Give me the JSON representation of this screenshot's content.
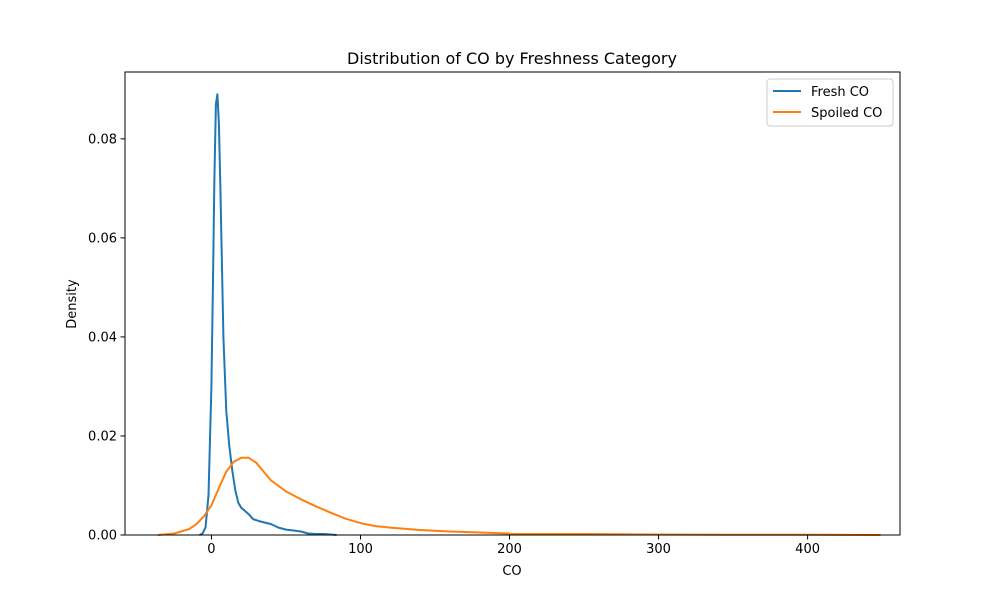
{
  "chart_data": {
    "type": "line",
    "title": "Distribution of CO by Freshness Category",
    "xlabel": "CO",
    "ylabel": "Density",
    "xlim": [
      -58,
      462
    ],
    "ylim": [
      0,
      0.0935
    ],
    "xticks": [
      0,
      100,
      200,
      300,
      400
    ],
    "xtick_labels": [
      "0",
      "100",
      "200",
      "300",
      "400"
    ],
    "yticks": [
      0.0,
      0.02,
      0.04,
      0.06,
      0.08
    ],
    "ytick_labels": [
      "0.00",
      "0.02",
      "0.04",
      "0.06",
      "0.08"
    ],
    "grid": false,
    "legend_position": "top-right",
    "series": [
      {
        "name": "Fresh CO",
        "color": "#1f77b4",
        "x": [
          -8,
          -6,
          -4,
          -2,
          0,
          1,
          2,
          3,
          4,
          5,
          6,
          7,
          8,
          10,
          12,
          14,
          16,
          18,
          20,
          22,
          25,
          28,
          32,
          36,
          40,
          45,
          50,
          55,
          60,
          65,
          70,
          75,
          80,
          84
        ],
        "y": [
          0.0,
          0.0003,
          0.0015,
          0.008,
          0.03,
          0.05,
          0.072,
          0.087,
          0.089,
          0.083,
          0.07,
          0.055,
          0.04,
          0.025,
          0.018,
          0.013,
          0.009,
          0.0065,
          0.0055,
          0.005,
          0.0042,
          0.0032,
          0.0028,
          0.0025,
          0.0022,
          0.0015,
          0.0011,
          0.0009,
          0.0007,
          0.0003,
          0.0002,
          0.0002,
          0.0001,
          0.0
        ]
      },
      {
        "name": "Spoiled CO",
        "color": "#ff7f0e",
        "x": [
          -36,
          -25,
          -15,
          -10,
          -5,
          0,
          5,
          10,
          15,
          20,
          25,
          30,
          35,
          40,
          50,
          60,
          70,
          80,
          90,
          100,
          110,
          120,
          140,
          160,
          180,
          200,
          250,
          300,
          350,
          400,
          449
        ],
        "y": [
          0.0,
          0.0003,
          0.0012,
          0.0022,
          0.0038,
          0.006,
          0.0095,
          0.0128,
          0.0148,
          0.0156,
          0.0156,
          0.0146,
          0.0128,
          0.011,
          0.0088,
          0.0072,
          0.0058,
          0.0045,
          0.0033,
          0.0024,
          0.0018,
          0.0015,
          0.001,
          0.0007,
          0.0005,
          0.0003,
          0.0002,
          0.0001,
          7e-05,
          5e-05,
          0.0
        ]
      }
    ]
  }
}
